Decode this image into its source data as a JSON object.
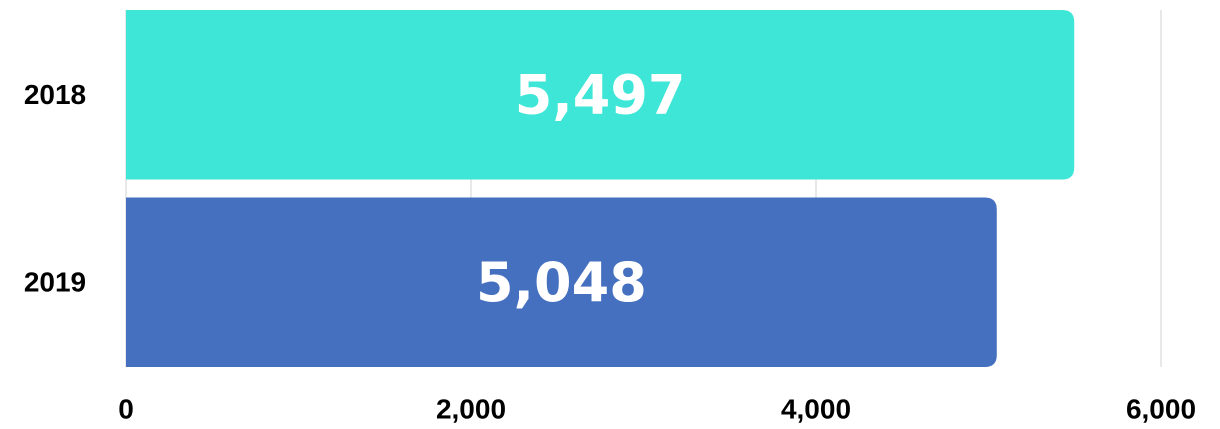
{
  "chart_data": {
    "type": "bar",
    "orientation": "horizontal",
    "categories": [
      "2018",
      "2019"
    ],
    "values": [
      5497,
      5048
    ],
    "value_labels": [
      "5,497",
      "5,048"
    ],
    "colors": [
      "#3de6d6",
      "#456fbf"
    ],
    "xlim": [
      0,
      6000
    ],
    "xticks": [
      0,
      {
        "value": 2000,
        "label": "2,000"
      },
      {
        "value": 4000,
        "label": "4,000"
      },
      {
        "value": 6000,
        "label": "6,000"
      }
    ],
    "grid": true
  }
}
